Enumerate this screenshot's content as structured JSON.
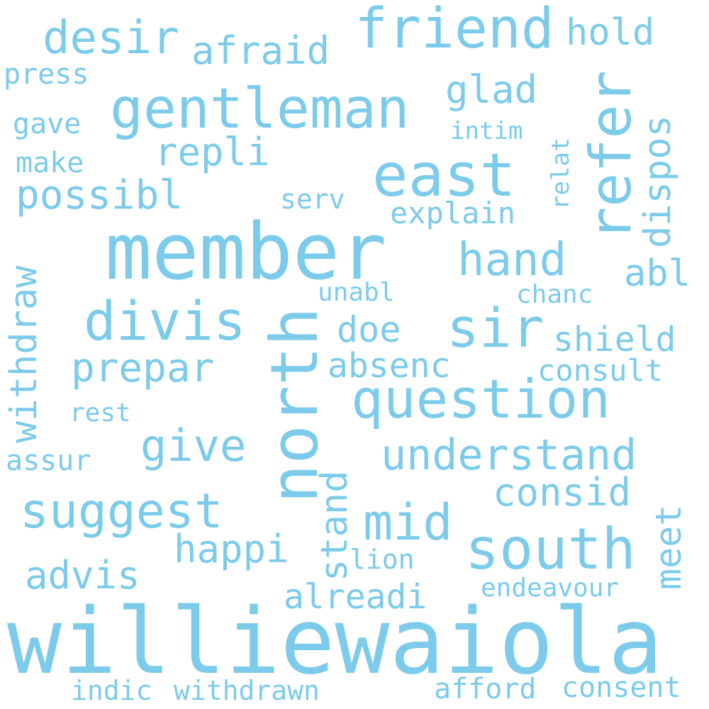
{
  "words": {
    "williewaiola": "williewaiola",
    "member": "member",
    "north": "north",
    "south": "south",
    "east": "east",
    "question": "question",
    "gentleman": "gentleman",
    "friend": "friend",
    "refer": "refer",
    "divis": "divis",
    "sir": "sir",
    "suggest": "suggest",
    "understand": "understand",
    "desir": "desir",
    "mid": "mid",
    "give": "give",
    "hand": "hand",
    "withdraw": "withdraw",
    "prepar": "prepar",
    "possibl": "possibl",
    "repli": "repli",
    "afraid": "afraid",
    "happi": "happi",
    "consid": "consid",
    "dispos": "dispos",
    "advis": "advis",
    "stand": "stand",
    "absenc": "absenc",
    "doe": "doe",
    "glad": "glad",
    "hold": "hold",
    "abl": "abl",
    "shield": "shield",
    "alreadi": "alreadi",
    "meet": "meet",
    "explain": "explain",
    "consult": "consult",
    "withdrawn": "withdrawn",
    "afford": "afford",
    "consent": "consent",
    "endeavour": "endeavour",
    "press": "press",
    "gave": "gave",
    "make": "make",
    "assur": "assur",
    "intim": "intim",
    "serv": "serv",
    "unabl": "unabl",
    "chanc": "chanc",
    "rest": "rest",
    "lion": "lion",
    "indic": "indic",
    "relat": "relat"
  },
  "colors": {
    "word": "#7ccbea",
    "background": "#ffffff"
  }
}
